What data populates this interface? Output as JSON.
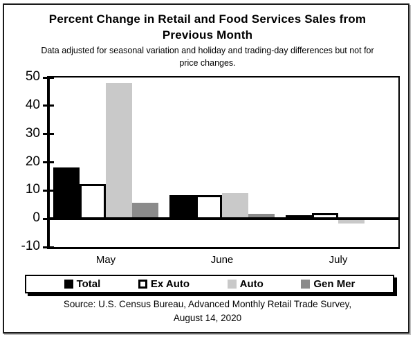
{
  "header": {
    "title_line1": "Percent Change in Retail and Food Services Sales from",
    "title_line2": "Previous Month",
    "subtitle_line1": "Data adjusted for seasonal variation and holiday and trading-day differences but not for",
    "subtitle_line2": "price changes."
  },
  "chart_data": {
    "type": "bar",
    "title": "Percent Change in Retail and Food Services Sales from Previous Month",
    "subtitle": "Data adjusted for seasonal variation and holiday and trading-day differences but not for price changes.",
    "categories": [
      "May",
      "June",
      "July"
    ],
    "series": [
      {
        "name": "Total",
        "color": "#000000",
        "values": [
          18.2,
          8.4,
          1.2
        ]
      },
      {
        "name": "Ex Auto",
        "color": "#ffffff",
        "values": [
          12.4,
          8.3,
          1.9
        ]
      },
      {
        "name": "Auto",
        "color": "#c9c9c9",
        "values": [
          48.0,
          9.0,
          -1.2
        ]
      },
      {
        "name": "Gen Mer",
        "color": "#8b8b8b",
        "values": [
          5.7,
          1.8,
          0
        ]
      }
    ],
    "ylim": [
      -10,
      50
    ],
    "yticks": [
      50,
      40,
      30,
      20,
      10,
      0,
      -10
    ],
    "xlabel": "",
    "ylabel": "",
    "grid": false,
    "legend_position": "bottom",
    "bar_outline_series": "Ex Auto"
  },
  "source": {
    "line1": "Source: U.S. Census Bureau, Advanced Monthly Retail Trade Survey,",
    "line2": "August 14, 2020"
  }
}
